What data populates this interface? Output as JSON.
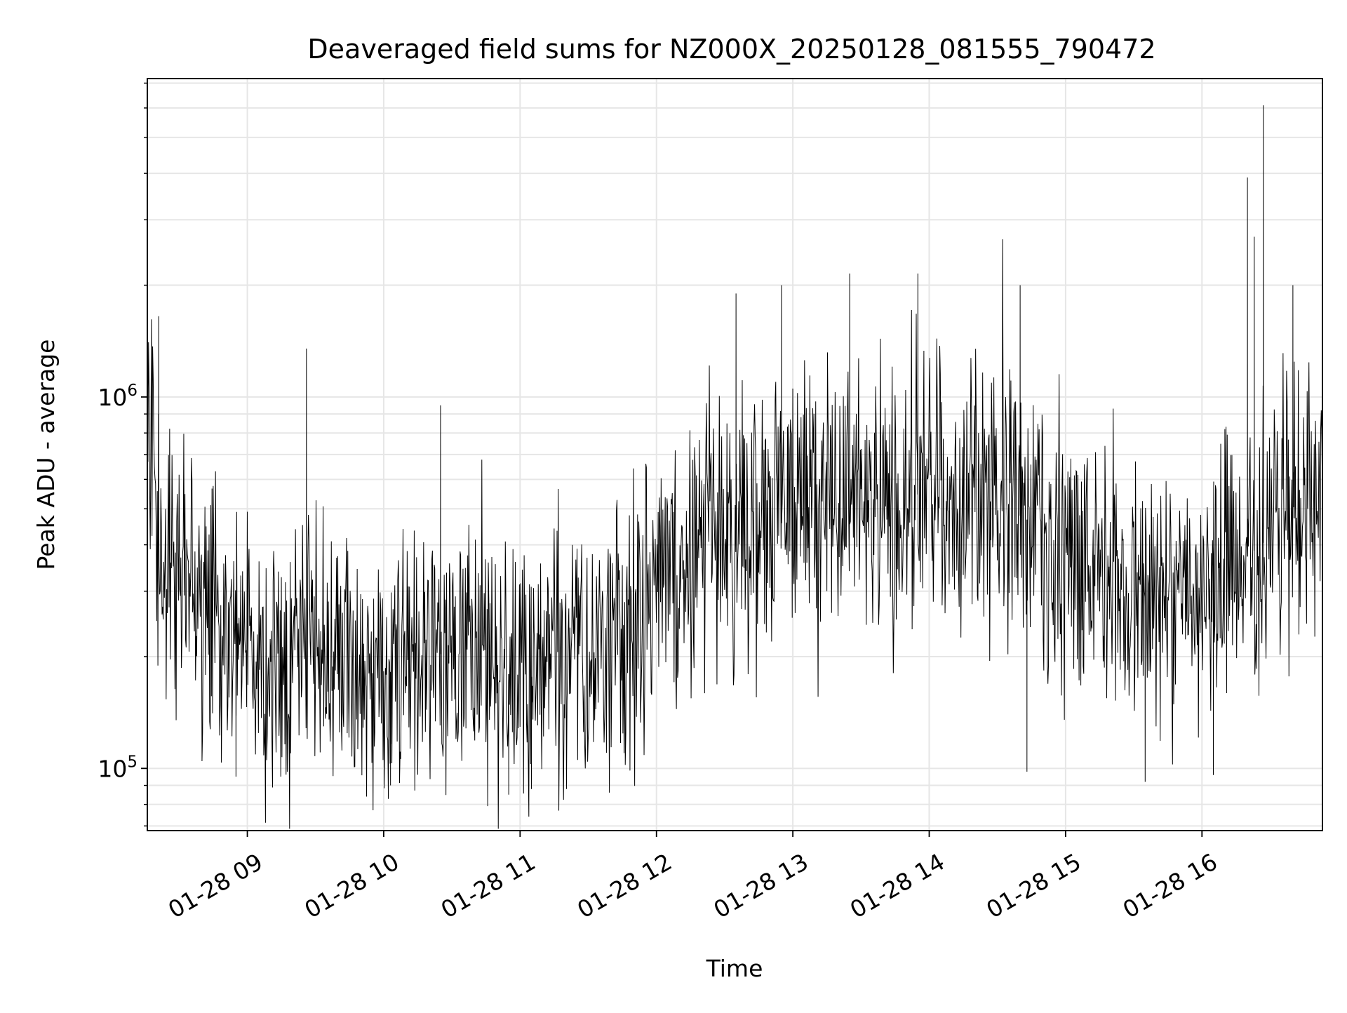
{
  "chart_data": {
    "type": "line",
    "title": "Deaveraged field sums for NZ000X_20250128_081555_790472",
    "xlabel": "Time",
    "ylabel": "Peak ADU - average",
    "x_start": "2025-01-28T08:16:00",
    "x_end": "2025-01-28T16:53:00",
    "x_ticks": [
      {
        "value": "2025-01-28T09:00:00",
        "label": "01-28 09"
      },
      {
        "value": "2025-01-28T10:00:00",
        "label": "01-28 10"
      },
      {
        "value": "2025-01-28T11:00:00",
        "label": "01-28 11"
      },
      {
        "value": "2025-01-28T12:00:00",
        "label": "01-28 12"
      },
      {
        "value": "2025-01-28T13:00:00",
        "label": "01-28 13"
      },
      {
        "value": "2025-01-28T14:00:00",
        "label": "01-28 14"
      },
      {
        "value": "2025-01-28T15:00:00",
        "label": "01-28 15"
      },
      {
        "value": "2025-01-28T16:00:00",
        "label": "01-28 16"
      }
    ],
    "y_scale": "log",
    "ylim": [
      68000,
      7200000
    ],
    "y_major_ticks": [
      {
        "value": 100000,
        "base": "10",
        "exp": "5"
      },
      {
        "value": 1000000,
        "base": "10",
        "exp": "6"
      }
    ],
    "grid": true,
    "line_color": "#000000",
    "grid_color": "#e6e6e6",
    "series": [
      {
        "x": [
          "2025-01-28T08:16:00",
          "2025-01-28T08:20:00",
          "2025-01-28T08:25:00",
          "2025-01-28T08:30:00",
          "2025-01-28T08:40:00",
          "2025-01-28T08:50:00",
          "2025-01-28T09:00:00",
          "2025-01-28T09:15:00",
          "2025-01-28T09:30:00",
          "2025-01-28T09:45:00",
          "2025-01-28T10:00:00",
          "2025-01-28T10:15:00",
          "2025-01-28T10:30:00",
          "2025-01-28T10:45:00",
          "2025-01-28T11:00:00",
          "2025-01-28T11:15:00",
          "2025-01-28T11:30:00",
          "2025-01-28T11:45:00",
          "2025-01-28T12:00:00",
          "2025-01-28T12:15:00",
          "2025-01-28T12:30:00",
          "2025-01-28T12:45:00",
          "2025-01-28T13:00:00",
          "2025-01-28T13:15:00",
          "2025-01-28T13:30:00",
          "2025-01-28T13:45:00",
          "2025-01-28T14:00:00",
          "2025-01-28T14:15:00",
          "2025-01-28T14:30:00",
          "2025-01-28T14:45:00",
          "2025-01-28T15:00:00",
          "2025-01-28T15:15:00",
          "2025-01-28T15:30:00",
          "2025-01-28T15:45:00",
          "2025-01-28T16:00:00",
          "2025-01-28T16:15:00",
          "2025-01-28T16:30:00",
          "2025-01-28T16:45:00",
          "2025-01-28T16:53:00"
        ],
        "values": [
          1200000,
          500000,
          360000,
          340000,
          280000,
          230000,
          210000,
          200000,
          220000,
          200000,
          180000,
          190000,
          210000,
          200000,
          170000,
          190000,
          200000,
          220000,
          320000,
          380000,
          450000,
          480000,
          520000,
          540000,
          560000,
          520000,
          560000,
          500000,
          520000,
          460000,
          400000,
          320000,
          270000,
          280000,
          300000,
          350000,
          420000,
          500000,
          600000
        ]
      }
    ],
    "notable_peaks": [
      {
        "x": "2025-01-28T08:21:00",
        "value": 1650000
      },
      {
        "x": "2025-01-28T09:26:00",
        "value": 1350000
      },
      {
        "x": "2025-01-28T10:25:00",
        "value": 950000
      },
      {
        "x": "2025-01-28T12:35:00",
        "value": 1900000
      },
      {
        "x": "2025-01-28T12:55:00",
        "value": 2000000
      },
      {
        "x": "2025-01-28T13:25:00",
        "value": 2150000
      },
      {
        "x": "2025-01-28T13:55:00",
        "value": 2150000
      },
      {
        "x": "2025-01-28T14:40:00",
        "value": 2000000
      },
      {
        "x": "2025-01-28T16:20:00",
        "value": 3900000
      },
      {
        "x": "2025-01-28T16:23:00",
        "value": 2700000
      },
      {
        "x": "2025-01-28T16:27:00",
        "value": 6100000
      },
      {
        "x": "2025-01-28T16:40:00",
        "value": 2000000
      }
    ],
    "notable_dips": [
      {
        "x": "2025-01-28T08:55:00",
        "value": 95000
      },
      {
        "x": "2025-01-28T10:03:00",
        "value": 90000
      },
      {
        "x": "2025-01-28T10:55:00",
        "value": 85000
      },
      {
        "x": "2025-01-28T11:05:00",
        "value": 88000
      },
      {
        "x": "2025-01-28T14:43:00",
        "value": 98000
      },
      {
        "x": "2025-01-28T15:35:00",
        "value": 92000
      },
      {
        "x": "2025-01-28T16:05:00",
        "value": 96000
      }
    ]
  }
}
